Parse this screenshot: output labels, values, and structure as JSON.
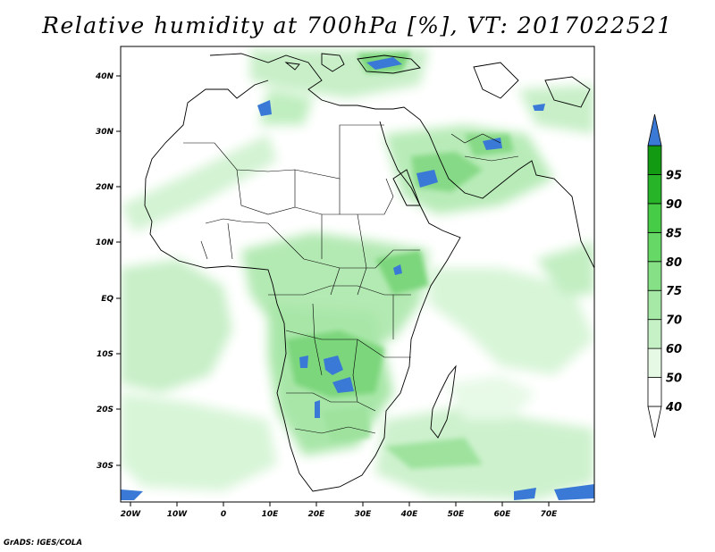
{
  "title": "Relative humidity at 700hPa [%], VT: 2017022521",
  "credit": "GrADS: IGES/COLA",
  "map": {
    "x_ticks": [
      "20W",
      "10W",
      "0",
      "10E",
      "20E",
      "30E",
      "40E",
      "50E",
      "60E",
      "70E"
    ],
    "y_ticks": [
      "40N",
      "30N",
      "20N",
      "10N",
      "EQ",
      "10S",
      "20S",
      "30S"
    ]
  },
  "colorbar": {
    "levels": [
      "40",
      "50",
      "60",
      "70",
      "75",
      "80",
      "85",
      "90",
      "95"
    ],
    "colors": [
      "#ffffff",
      "#e5f9e5",
      "#c6f1c6",
      "#a6e9a6",
      "#86e086",
      "#66d866",
      "#47cc47",
      "#28b428",
      "#139a13"
    ],
    "over_color": "#3a7ad6"
  }
}
